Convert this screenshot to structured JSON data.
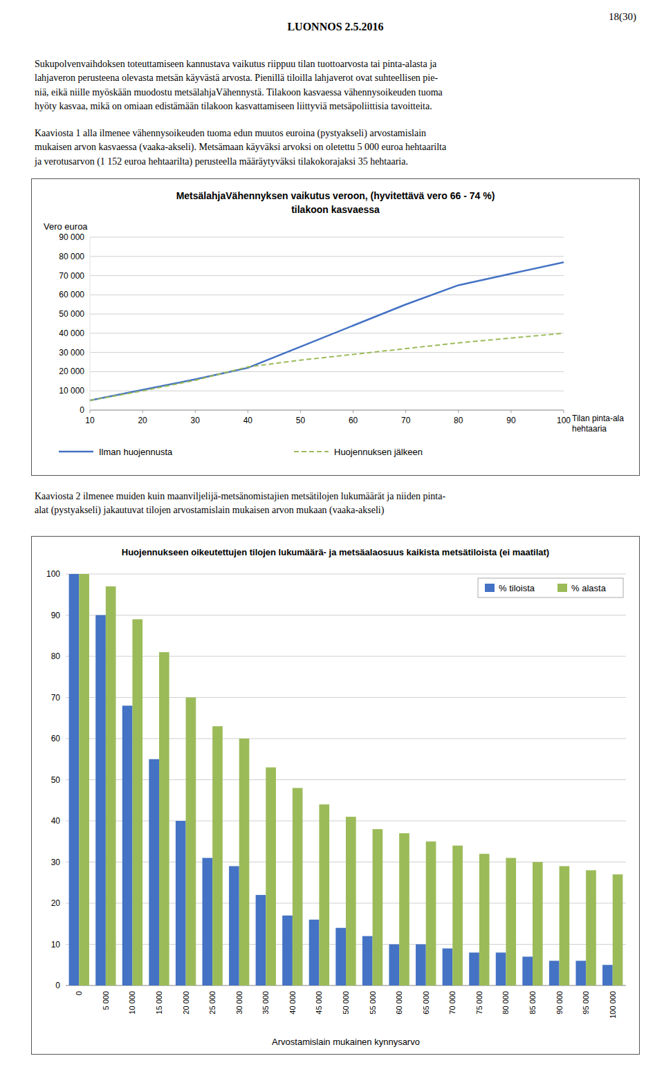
{
  "header": "LUONNOS 2.5.2016",
  "page_number": "18(30)",
  "paragraphs": [
    "Sukupolvenvaihdoksen toteuttamiseen kannustava vaikutus riippuu tilan tuottoarvosta tai pinta-alasta ja\nlahjaveron perusteena olevasta metsän käyvästä arvosta. Pienillä tiloilla lahjaverot ovat suhteellisen pie-\nniä, eikä niille myöskään muodostu metsälahjaVähennystä. Tilakoon kasvaessa vähennysoikeuden tuoma\nhyöty kasvaa, mikä on omiaan edistämään tilakoon kasvattamiseen liittyviä metsäpoliittisia tavoitteita.",
    "Kaaviosta 1 alla ilmenee vähennysoikeuden tuoma edun muutos euroina (pystyakseli) arvostamislain\nmukaisen arvon kasvaessa (vaaka-akseli). Metsämaan käyväksi arvoksi on oletettu 5 000 euroa hehtaarilta\nja verotusarvon (1 152 euroa hehtaarilta) perusteella määräytyväksi tilakokorajaksi 35 hehtaaria.",
    "Kaaviosta 2 ilmenee muiden kuin maanviljelijä-metsänomistajien metsätilojen lukumäärät ja niiden pinta-\nalat (pystyakseli) jakautuvat tilojen arvostamislain mukaisen arvon mukaan (vaaka-akseli)"
  ],
  "chart_data": [
    {
      "type": "line",
      "title": "MetsälahjaVähennyksen vaikutus veroon,  (hyvitettävä vero 66 - 74 %)",
      "subtitle": "tilakoon kasvaessa",
      "ylabel": "Vero euroa",
      "xlabel": "Tilan pinta-ala\nhehtaaria",
      "x": [
        10,
        20,
        30,
        35,
        40,
        50,
        60,
        70,
        80,
        90,
        100
      ],
      "series": [
        {
          "name": "Ilman huojennusta",
          "color": "#4472C4",
          "line_style": "solid",
          "values": [
            5000,
            10500,
            16000,
            19000,
            22000,
            33000,
            44000,
            55000,
            65000,
            71000,
            77000
          ]
        },
        {
          "name": "Huojennuksen jälkeen",
          "color": "#9BBB59",
          "line_style": "dashed",
          "values": [
            5000,
            10000,
            15500,
            19000,
            22500,
            26000,
            29000,
            32000,
            35000,
            37500,
            40000
          ]
        }
      ],
      "xlim": [
        10,
        100
      ],
      "xticks": [
        10,
        20,
        30,
        40,
        50,
        60,
        70,
        80,
        90,
        100
      ],
      "ylim": [
        0,
        90000
      ],
      "yticks": [
        0,
        {
          "value": 10000,
          "label": "10 000"
        },
        {
          "value": 20000,
          "label": "20 000"
        },
        {
          "value": 30000,
          "label": "30 000"
        },
        {
          "value": 40000,
          "label": "40 000"
        },
        {
          "value": 50000,
          "label": "50 000"
        },
        {
          "value": 60000,
          "label": "60 000"
        },
        {
          "value": 70000,
          "label": "70 000"
        },
        {
          "value": 80000,
          "label": "80 000"
        },
        {
          "value": 90000,
          "label": "90 000"
        }
      ],
      "grid": true,
      "legend": "bottom"
    },
    {
      "type": "bar",
      "title": "Huojennukseen oikeutettujen tilojen lukumäärä- ja metsäalaosuus kaikista metsätiloista (ei maatilat)",
      "xlabel": "Arvostamislain mukainen kynnysarvo",
      "categories": [
        "0",
        "5 000",
        "10 000",
        "15 000",
        "20 000",
        "25 000",
        "30 000",
        "35 000",
        "40 000",
        "45 000",
        "50 000",
        "55 000",
        "60 000",
        "65 000",
        "70 000",
        "75 000",
        "80 000",
        "85 000",
        "90 000",
        "95 000",
        "100 000"
      ],
      "series": [
        {
          "name": "% tiloista",
          "color": "#4472C4",
          "values": [
            100,
            90,
            68,
            55,
            40,
            31,
            29,
            22,
            17,
            16,
            14,
            12,
            10,
            10,
            9,
            8,
            8,
            7,
            6,
            6,
            5
          ]
        },
        {
          "name": "% alasta",
          "color": "#9BBB59",
          "values": [
            100,
            97,
            89,
            81,
            70,
            63,
            60,
            53,
            48,
            44,
            41,
            38,
            37,
            35,
            34,
            32,
            31,
            30,
            29,
            28,
            27
          ]
        }
      ],
      "ylim": [
        0,
        100
      ],
      "yticks": [
        0,
        10,
        20,
        30,
        40,
        50,
        60,
        70,
        80,
        90,
        100
      ],
      "grid": true,
      "legend": "upper right"
    }
  ]
}
